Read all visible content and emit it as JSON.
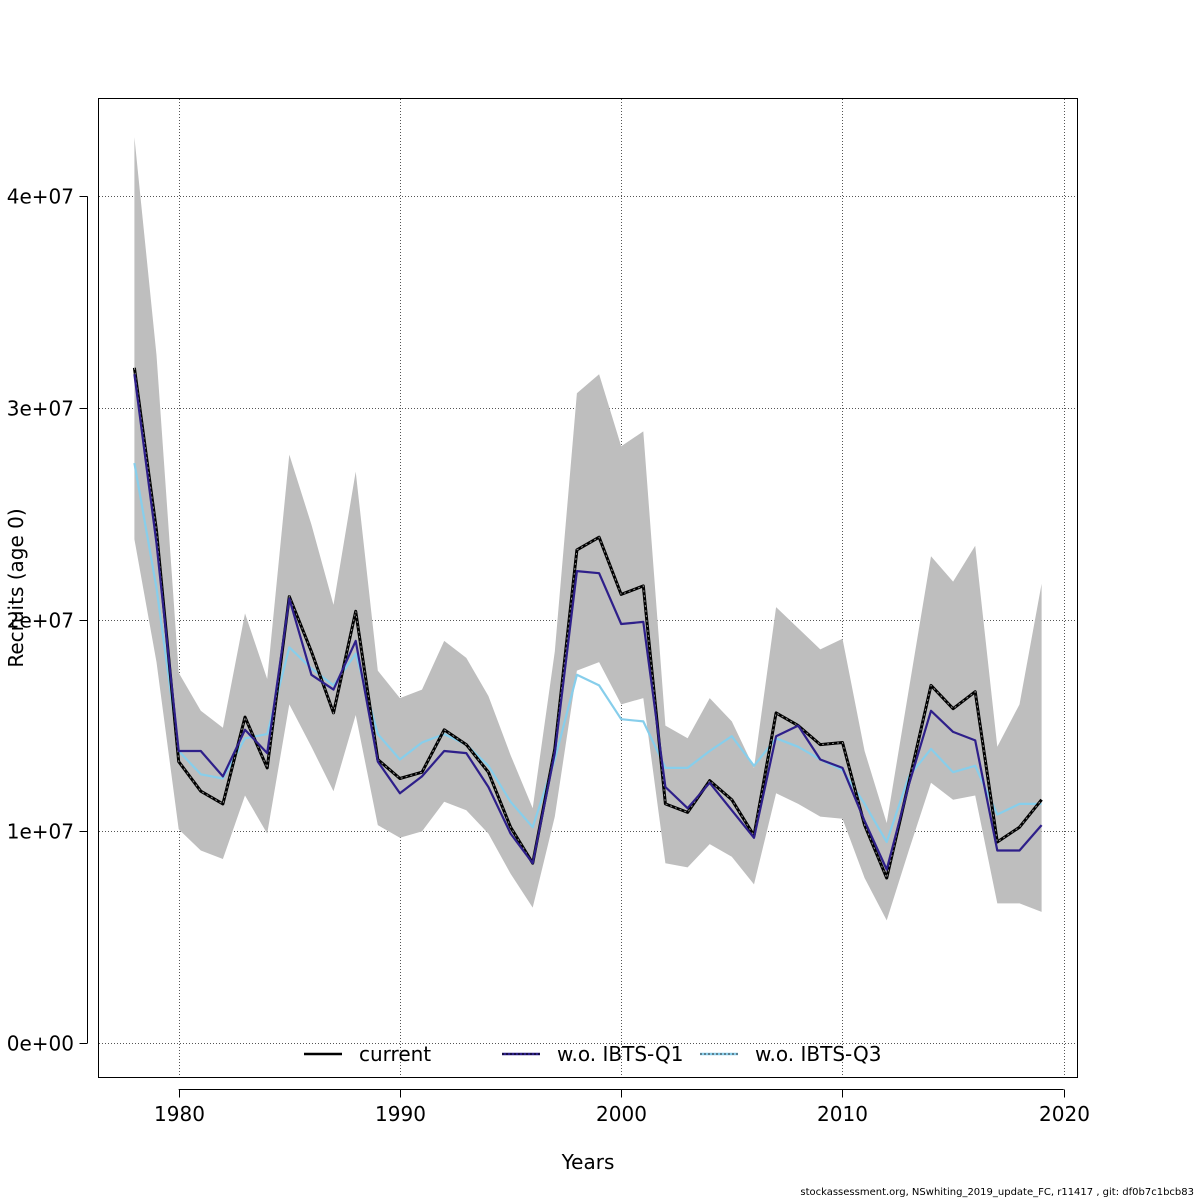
{
  "chart_data": {
    "type": "line",
    "title": "",
    "xlabel": "Years",
    "ylabel": "Recruits (age 0)",
    "xlim": [
      1976.4,
      2020.6
    ],
    "ylim": [
      -1600000,
      44600000
    ],
    "xticks": [
      1980,
      1990,
      2000,
      2010,
      2020
    ],
    "xtick_labels": [
      "1980",
      "1990",
      "2000",
      "2010",
      "2020"
    ],
    "yticks": [
      0,
      10000000,
      20000000,
      30000000,
      40000000
    ],
    "ytick_labels": [
      "0e+00",
      "1e+07",
      "2e+07",
      "3e+07",
      "4e+07"
    ],
    "grid": true,
    "legend_position": "bottom-inside",
    "x": [
      1978,
      1979,
      1980,
      1981,
      1982,
      1983,
      1984,
      1985,
      1986,
      1987,
      1988,
      1989,
      1990,
      1991,
      1992,
      1993,
      1994,
      1995,
      1996,
      1997,
      1998,
      1999,
      2000,
      2001,
      2002,
      2003,
      2004,
      2005,
      2006,
      2007,
      2008,
      2009,
      2010,
      2011,
      2012,
      2013,
      2014,
      2015,
      2016,
      2017,
      2018,
      2019
    ],
    "confidence_band": {
      "color": "#bebebe",
      "lower": [
        23800000,
        18000000,
        10100000,
        9100000,
        8700000,
        11700000,
        9900000,
        16000000,
        14000000,
        11900000,
        15500000,
        10300000,
        9700000,
        10000000,
        11400000,
        11000000,
        9900000,
        8000000,
        6400000,
        10700000,
        17600000,
        18000000,
        16000000,
        16300000,
        8500000,
        8300000,
        9400000,
        8800000,
        7500000,
        11800000,
        11300000,
        10700000,
        10600000,
        7800000,
        5800000,
        9100000,
        12300000,
        11500000,
        11700000,
        6600000,
        6600000,
        6200000
      ],
      "upper": [
        42800000,
        32500000,
        17500000,
        15700000,
        14900000,
        20300000,
        17200000,
        27800000,
        24500000,
        20700000,
        27000000,
        17600000,
        16300000,
        16700000,
        19000000,
        18200000,
        16400000,
        13600000,
        11100000,
        18500000,
        30700000,
        31600000,
        28200000,
        28900000,
        15000000,
        14400000,
        16300000,
        15200000,
        13000000,
        20600000,
        19600000,
        18600000,
        19100000,
        13800000,
        10400000,
        16700000,
        23000000,
        21800000,
        23500000,
        14000000,
        16000000,
        21700000
      ]
    },
    "series": [
      {
        "name": "current",
        "color": "#000000",
        "dash": "solid",
        "values": [
          31900000,
          24200000,
          13300000,
          11900000,
          11300000,
          15400000,
          13000000,
          21100000,
          18500000,
          15600000,
          20400000,
          13400000,
          12500000,
          12800000,
          14800000,
          14100000,
          12800000,
          10200000,
          8500000,
          13900000,
          23300000,
          23900000,
          21200000,
          21600000,
          11300000,
          10900000,
          12400000,
          11500000,
          9800000,
          15600000,
          15000000,
          14100000,
          14200000,
          10300000,
          7800000,
          12300000,
          16900000,
          15800000,
          16600000,
          9500000,
          10200000,
          11500000
        ]
      },
      {
        "name": "w.o. IBTS-Q1",
        "color": "#2e1f8a",
        "dash": "solid",
        "values": [
          31600000,
          23600000,
          13800000,
          13800000,
          12600000,
          14800000,
          13700000,
          21000000,
          17400000,
          16700000,
          19000000,
          13300000,
          11800000,
          12600000,
          13800000,
          13700000,
          12100000,
          9900000,
          8500000,
          13700000,
          22300000,
          22200000,
          19800000,
          19900000,
          12100000,
          11100000,
          12300000,
          11000000,
          9700000,
          14500000,
          15000000,
          13400000,
          13000000,
          10500000,
          8200000,
          12200000,
          15700000,
          14700000,
          14300000,
          9100000,
          9100000,
          10300000
        ]
      },
      {
        "name": "w.o. IBTS-Q3",
        "color": "#87ceeb",
        "dash": "solid",
        "values": [
          27400000,
          21500000,
          13800000,
          12700000,
          12500000,
          14400000,
          14600000,
          18700000,
          17700000,
          16900000,
          18400000,
          14600000,
          13400000,
          14200000,
          14600000,
          14100000,
          13100000,
          11400000,
          10200000,
          13400000,
          17400000,
          16900000,
          15300000,
          15200000,
          13000000,
          13000000,
          13800000,
          14500000,
          13100000,
          14400000,
          14000000,
          13400000,
          12900000,
          11300000,
          9500000,
          12600000,
          13900000,
          12800000,
          13100000,
          10800000,
          11300000,
          11300000
        ]
      }
    ],
    "legend": [
      {
        "label": "current",
        "color": "#000000"
      },
      {
        "label": "w.o. IBTS-Q1",
        "color": "#2e1f8a"
      },
      {
        "label": "w.o. IBTS-Q3",
        "color": "#87ceeb"
      }
    ]
  },
  "footer": "stockassessment.org, NSwhiting_2019_update_FC, r11417 , git: df0b7c1bcb83"
}
